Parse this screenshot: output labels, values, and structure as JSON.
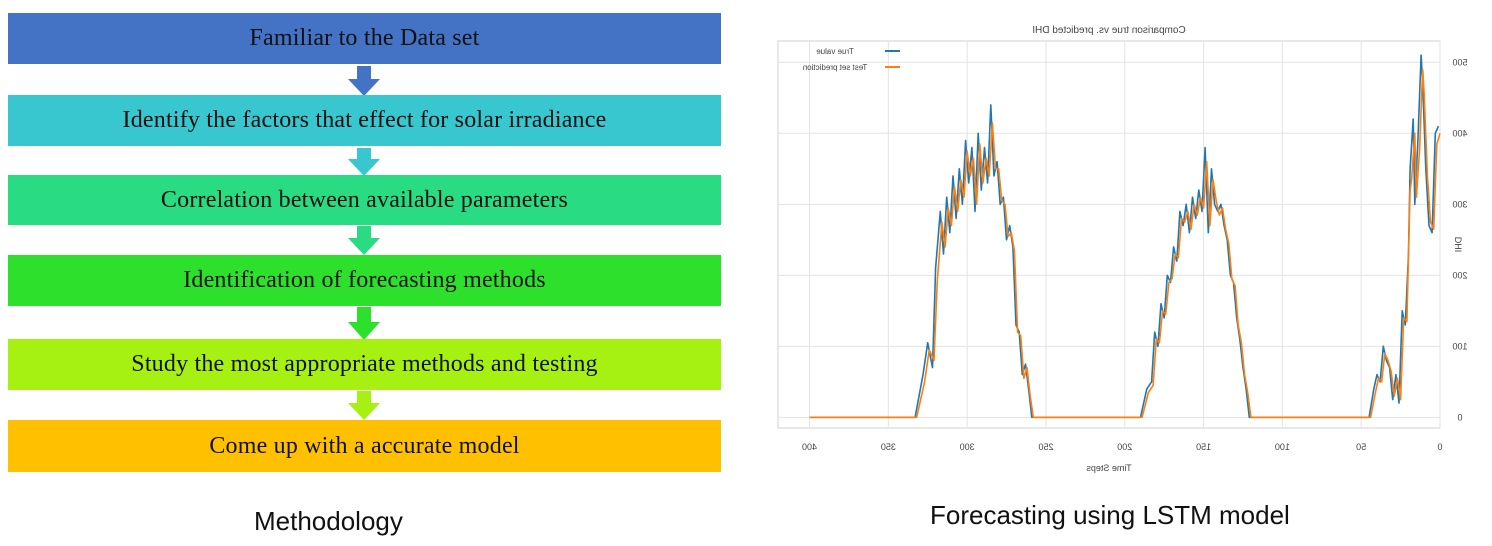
{
  "methodology": {
    "caption": "Methodology",
    "steps": [
      {
        "label": "Familiar to the Data set",
        "color": "#4472C4"
      },
      {
        "label": "Identify the factors that effect for solar irradiance",
        "color": "#38C6CF"
      },
      {
        "label": "Correlation between available parameters",
        "color": "#29DB82"
      },
      {
        "label": "Identification of forecasting methods",
        "color": "#2CE02C"
      },
      {
        "label": "Study the most appropriate methods and testing",
        "color": "#A6F012"
      },
      {
        "label": "Come up with a accurate model",
        "color": "#FFC000"
      }
    ]
  },
  "forecast": {
    "caption": "Forecasting using LSTM model"
  },
  "chart_data": {
    "type": "line",
    "title": "Comparison true vs. predicted DHI",
    "xlabel": "Time Steps",
    "ylabel": "DHI",
    "mirrored": true,
    "xlim": [
      0,
      420
    ],
    "ylim": [
      -15,
      530
    ],
    "xticks": [
      400,
      350,
      300,
      250,
      200,
      150,
      100,
      50,
      0
    ],
    "yticks": [
      0,
      100,
      200,
      300,
      400,
      500
    ],
    "grid": true,
    "legend_position": "top-right",
    "series": [
      {
        "name": "True value",
        "color": "#1F77B4",
        "points": [
          [
            400,
            0
          ],
          [
            333,
            0
          ],
          [
            328,
            60
          ],
          [
            325,
            105
          ],
          [
            322,
            70
          ],
          [
            320,
            210
          ],
          [
            317,
            290
          ],
          [
            315,
            230
          ],
          [
            313,
            310
          ],
          [
            311,
            260
          ],
          [
            309,
            340
          ],
          [
            307,
            280
          ],
          [
            305,
            350
          ],
          [
            303,
            300
          ],
          [
            301,
            390
          ],
          [
            299,
            330
          ],
          [
            297,
            380
          ],
          [
            295,
            290
          ],
          [
            293,
            400
          ],
          [
            291,
            320
          ],
          [
            289,
            380
          ],
          [
            287,
            330
          ],
          [
            285,
            440
          ],
          [
            283,
            340
          ],
          [
            281,
            360
          ],
          [
            279,
            300
          ],
          [
            277,
            310
          ],
          [
            275,
            250
          ],
          [
            273,
            270
          ],
          [
            271,
            240
          ],
          [
            269,
            130
          ],
          [
            267,
            120
          ],
          [
            265,
            60
          ],
          [
            263,
            75
          ],
          [
            261,
            40
          ],
          [
            259,
            0
          ],
          [
            190,
            0
          ],
          [
            186,
            40
          ],
          [
            183,
            50
          ],
          [
            181,
            120
          ],
          [
            179,
            100
          ],
          [
            177,
            160
          ],
          [
            175,
            140
          ],
          [
            173,
            200
          ],
          [
            171,
            190
          ],
          [
            169,
            240
          ],
          [
            167,
            220
          ],
          [
            165,
            290
          ],
          [
            163,
            270
          ],
          [
            161,
            300
          ],
          [
            159,
            260
          ],
          [
            157,
            310
          ],
          [
            155,
            280
          ],
          [
            153,
            320
          ],
          [
            151,
            290
          ],
          [
            149,
            380
          ],
          [
            147,
            260
          ],
          [
            145,
            350
          ],
          [
            143,
            300
          ],
          [
            141,
            290
          ],
          [
            139,
            300
          ],
          [
            137,
            270
          ],
          [
            135,
            250
          ],
          [
            133,
            200
          ],
          [
            131,
            190
          ],
          [
            129,
            140
          ],
          [
            127,
            110
          ],
          [
            125,
            70
          ],
          [
            123,
            40
          ],
          [
            121,
            0
          ],
          [
            45,
            0
          ],
          [
            42,
            40
          ],
          [
            40,
            60
          ],
          [
            38,
            50
          ],
          [
            36,
            100
          ],
          [
            34,
            80
          ],
          [
            32,
            70
          ],
          [
            30,
            25
          ],
          [
            28,
            60
          ],
          [
            26,
            20
          ],
          [
            24,
            150
          ],
          [
            22,
            130
          ],
          [
            20,
            230
          ],
          [
            19,
            350
          ],
          [
            17,
            420
          ],
          [
            16,
            300
          ],
          [
            14,
            390
          ],
          [
            12,
            510
          ],
          [
            11,
            470
          ],
          [
            9,
            350
          ],
          [
            7,
            270
          ],
          [
            5,
            260
          ],
          [
            3,
            400
          ],
          [
            1,
            410
          ]
        ]
      },
      {
        "name": "Test set prediction",
        "color": "#FF7F0E",
        "points": [
          [
            400,
            0
          ],
          [
            332,
            0
          ],
          [
            327,
            50
          ],
          [
            324,
            95
          ],
          [
            321,
            80
          ],
          [
            319,
            190
          ],
          [
            316,
            275
          ],
          [
            314,
            240
          ],
          [
            312,
            295
          ],
          [
            310,
            270
          ],
          [
            308,
            325
          ],
          [
            306,
            290
          ],
          [
            304,
            335
          ],
          [
            302,
            310
          ],
          [
            300,
            375
          ],
          [
            298,
            340
          ],
          [
            296,
            365
          ],
          [
            294,
            300
          ],
          [
            292,
            385
          ],
          [
            290,
            330
          ],
          [
            288,
            365
          ],
          [
            286,
            340
          ],
          [
            284,
            415
          ],
          [
            282,
            350
          ],
          [
            280,
            350
          ],
          [
            278,
            305
          ],
          [
            276,
            300
          ],
          [
            274,
            255
          ],
          [
            272,
            260
          ],
          [
            270,
            235
          ],
          [
            268,
            120
          ],
          [
            266,
            115
          ],
          [
            264,
            55
          ],
          [
            262,
            70
          ],
          [
            260,
            30
          ],
          [
            258,
            0
          ],
          [
            189,
            0
          ],
          [
            185,
            35
          ],
          [
            182,
            45
          ],
          [
            180,
            110
          ],
          [
            178,
            105
          ],
          [
            176,
            150
          ],
          [
            174,
            145
          ],
          [
            172,
            190
          ],
          [
            170,
            195
          ],
          [
            168,
            230
          ],
          [
            166,
            225
          ],
          [
            164,
            280
          ],
          [
            162,
            275
          ],
          [
            160,
            290
          ],
          [
            158,
            265
          ],
          [
            156,
            300
          ],
          [
            154,
            285
          ],
          [
            152,
            310
          ],
          [
            150,
            295
          ],
          [
            148,
            360
          ],
          [
            146,
            270
          ],
          [
            144,
            335
          ],
          [
            142,
            305
          ],
          [
            140,
            285
          ],
          [
            138,
            295
          ],
          [
            136,
            265
          ],
          [
            134,
            245
          ],
          [
            132,
            195
          ],
          [
            130,
            185
          ],
          [
            128,
            130
          ],
          [
            126,
            105
          ],
          [
            124,
            60
          ],
          [
            122,
            35
          ],
          [
            120,
            0
          ],
          [
            44,
            0
          ],
          [
            41,
            35
          ],
          [
            39,
            55
          ],
          [
            37,
            50
          ],
          [
            35,
            90
          ],
          [
            33,
            80
          ],
          [
            31,
            65
          ],
          [
            29,
            30
          ],
          [
            27,
            55
          ],
          [
            25,
            25
          ],
          [
            23,
            140
          ],
          [
            21,
            135
          ],
          [
            19,
            320
          ],
          [
            18,
            335
          ],
          [
            16,
            400
          ],
          [
            15,
            310
          ],
          [
            13,
            375
          ],
          [
            11,
            490
          ],
          [
            10,
            455
          ],
          [
            8,
            340
          ],
          [
            6,
            275
          ],
          [
            4,
            265
          ],
          [
            2,
            385
          ],
          [
            0,
            400
          ]
        ]
      }
    ]
  }
}
